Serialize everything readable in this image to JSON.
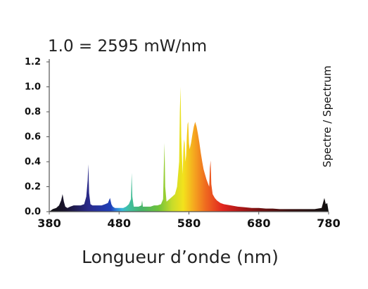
{
  "chart_data": {
    "type": "area",
    "title": "1.0 = 2595 mW/nm",
    "xlabel": "Longueur d’onde (nm)",
    "ylabel": "",
    "legend_label": "Spectre / Spectrum",
    "xlim": [
      380,
      780
    ],
    "ylim": [
      0,
      1.2
    ],
    "x_ticks": [
      380,
      480,
      580,
      680,
      780
    ],
    "y_ticks": [
      0.0,
      0.2,
      0.4,
      0.6,
      0.8,
      1.0,
      1.2
    ],
    "y_tick_labels": [
      "0.0",
      "0.2",
      "0.4",
      "0.6",
      "0.8",
      "1.0",
      "1.2"
    ],
    "x_tick_labels": [
      "380",
      "480",
      "580",
      "680",
      "780"
    ],
    "grid": false,
    "fill": "wavelength-colored",
    "x": [
      380,
      385,
      390,
      394,
      397,
      399,
      401,
      403,
      406,
      410,
      415,
      420,
      425,
      430,
      433,
      435,
      436,
      437,
      439,
      442,
      446,
      450,
      455,
      460,
      464,
      467,
      469,
      471,
      474,
      478,
      482,
      486,
      490,
      494,
      497,
      498,
      499,
      501,
      504,
      508,
      512,
      513,
      514,
      516,
      520,
      525,
      530,
      535,
      540,
      543,
      544,
      545,
      546,
      548,
      552,
      556,
      560,
      563,
      566,
      567,
      568,
      569,
      571,
      572,
      573,
      574,
      575,
      576,
      577,
      578,
      579,
      580,
      581,
      583,
      585,
      587,
      589,
      591,
      593,
      595,
      597,
      599,
      601,
      603,
      605,
      607,
      609,
      610,
      611,
      612,
      614,
      617,
      620,
      625,
      630,
      640,
      650,
      660,
      670,
      680,
      690,
      700,
      710,
      720,
      730,
      740,
      750,
      760,
      770,
      774,
      776,
      778,
      780
    ],
    "y": [
      0.0,
      0.02,
      0.03,
      0.05,
      0.09,
      0.14,
      0.08,
      0.04,
      0.03,
      0.04,
      0.05,
      0.05,
      0.05,
      0.06,
      0.12,
      0.25,
      0.38,
      0.15,
      0.06,
      0.05,
      0.05,
      0.05,
      0.05,
      0.06,
      0.07,
      0.11,
      0.06,
      0.04,
      0.03,
      0.03,
      0.03,
      0.03,
      0.04,
      0.06,
      0.1,
      0.31,
      0.12,
      0.04,
      0.04,
      0.04,
      0.05,
      0.09,
      0.04,
      0.04,
      0.04,
      0.04,
      0.05,
      0.05,
      0.06,
      0.1,
      0.35,
      0.55,
      0.2,
      0.08,
      0.1,
      0.12,
      0.14,
      0.2,
      0.4,
      0.8,
      1.0,
      0.6,
      0.3,
      0.5,
      0.58,
      0.55,
      0.4,
      0.45,
      0.6,
      0.7,
      0.72,
      0.55,
      0.5,
      0.55,
      0.62,
      0.68,
      0.72,
      0.68,
      0.62,
      0.55,
      0.47,
      0.4,
      0.34,
      0.3,
      0.26,
      0.23,
      0.2,
      0.35,
      0.41,
      0.22,
      0.14,
      0.11,
      0.09,
      0.07,
      0.06,
      0.05,
      0.04,
      0.035,
      0.03,
      0.03,
      0.025,
      0.025,
      0.02,
      0.02,
      0.02,
      0.02,
      0.02,
      0.02,
      0.03,
      0.11,
      0.06,
      0.07,
      0.0
    ]
  }
}
